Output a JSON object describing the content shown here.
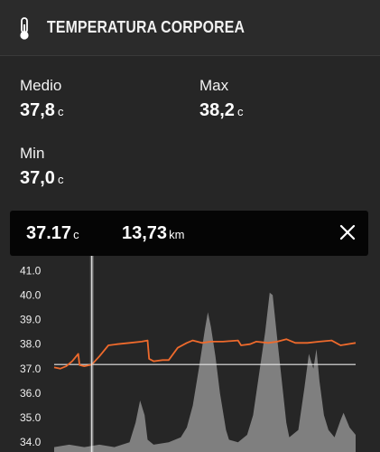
{
  "header": {
    "title": "TEMPERATURA CORPOREA",
    "icon": "thermometer-icon"
  },
  "stats": {
    "medio": {
      "label": "Medio",
      "value": "37,8",
      "unit": "c"
    },
    "max": {
      "label": "Max",
      "value": "38,2",
      "unit": "c"
    },
    "min": {
      "label": "Min",
      "value": "37,0",
      "unit": "c"
    }
  },
  "tooltip": {
    "temperature": "37.17",
    "temperature_unit": "c",
    "distance": "13,73",
    "distance_unit": "km"
  },
  "colors": {
    "background": "#262626",
    "temperature_line": "#ee6a2c",
    "elevation_fill": "#8a8a8a"
  },
  "chart_data": {
    "type": "line",
    "y_tick_labels": [
      "41.0",
      "40.0",
      "39.0",
      "38.0",
      "37.0",
      "36.0",
      "35.0",
      "34.0"
    ],
    "ylim": [
      33.6,
      41.6
    ],
    "xlim": [
      0,
      100
    ],
    "cursor_x": 12.5,
    "reference_y": 37.17,
    "series": [
      {
        "values": [
          [
            0,
            37.05
          ],
          [
            2,
            37.0
          ],
          [
            4,
            37.1
          ],
          [
            6,
            37.3
          ],
          [
            8,
            37.6
          ],
          [
            8.4,
            37.15
          ],
          [
            10,
            37.1
          ],
          [
            12.5,
            37.17
          ],
          [
            15,
            37.5
          ],
          [
            18,
            37.95
          ],
          [
            21,
            38.0
          ],
          [
            25,
            38.05
          ],
          [
            29,
            38.1
          ],
          [
            31,
            38.15
          ],
          [
            31.5,
            37.4
          ],
          [
            33,
            37.3
          ],
          [
            36,
            37.35
          ],
          [
            38,
            37.35
          ],
          [
            41,
            37.85
          ],
          [
            44,
            38.05
          ],
          [
            46,
            38.15
          ],
          [
            49,
            38.05
          ],
          [
            52,
            38.1
          ],
          [
            56,
            38.1
          ],
          [
            61,
            38.15
          ],
          [
            62,
            37.95
          ],
          [
            65,
            38.0
          ],
          [
            67,
            38.1
          ],
          [
            71,
            38.05
          ],
          [
            74,
            38.1
          ],
          [
            77,
            38.2
          ],
          [
            80,
            38.05
          ],
          [
            84,
            38.05
          ],
          [
            88,
            38.1
          ],
          [
            92,
            38.15
          ],
          [
            95,
            37.95
          ],
          [
            100,
            38.05
          ]
        ]
      },
      {
        "type": "area",
        "values": [
          [
            0,
            33.8
          ],
          [
            5,
            33.9
          ],
          [
            10,
            33.8
          ],
          [
            15,
            33.9
          ],
          [
            20,
            33.8
          ],
          [
            25,
            34.0
          ],
          [
            27,
            34.8
          ],
          [
            28.5,
            35.7
          ],
          [
            30,
            35.1
          ],
          [
            31,
            34.1
          ],
          [
            33,
            33.9
          ],
          [
            38,
            34.0
          ],
          [
            42,
            34.2
          ],
          [
            44,
            34.6
          ],
          [
            46,
            35.5
          ],
          [
            48,
            37.0
          ],
          [
            50,
            38.6
          ],
          [
            51,
            39.3
          ],
          [
            52,
            38.7
          ],
          [
            53.5,
            37.5
          ],
          [
            55,
            36.0
          ],
          [
            57,
            34.5
          ],
          [
            58,
            34.1
          ],
          [
            61,
            34.0
          ],
          [
            64,
            34.3
          ],
          [
            66,
            35.1
          ],
          [
            68,
            36.8
          ],
          [
            70,
            38.5
          ],
          [
            71.5,
            40.1
          ],
          [
            72.5,
            40.0
          ],
          [
            74,
            38.2
          ],
          [
            75.5,
            36.5
          ],
          [
            77,
            34.8
          ],
          [
            78,
            34.2
          ],
          [
            81,
            34.5
          ],
          [
            83,
            36.2
          ],
          [
            84.5,
            37.6
          ],
          [
            86,
            37.0
          ],
          [
            87,
            37.8
          ],
          [
            88,
            36.5
          ],
          [
            89.5,
            35.1
          ],
          [
            91,
            34.5
          ],
          [
            93,
            34.2
          ],
          [
            95,
            34.9
          ],
          [
            96,
            35.2
          ],
          [
            98,
            34.6
          ],
          [
            100,
            34.3
          ]
        ]
      }
    ]
  }
}
